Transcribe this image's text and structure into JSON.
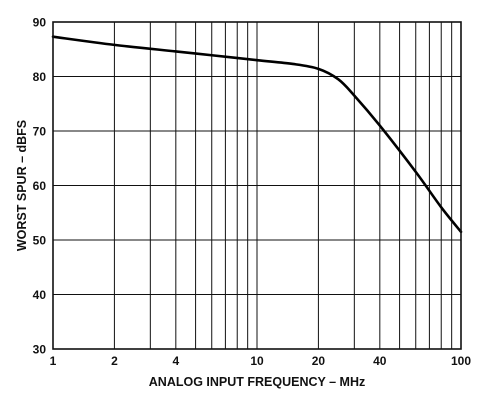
{
  "chart_data": {
    "type": "line",
    "xscale": "log",
    "xlabel": "ANALOG INPUT FREQUENCY – MHz",
    "ylabel": "WORST SPUR – dBFS",
    "xlim": [
      1,
      100
    ],
    "ylim": [
      30,
      90
    ],
    "grid": true,
    "x_tick_labels": [
      "1",
      "2",
      "4",
      "10",
      "20",
      "40",
      "100"
    ],
    "y_tick_labels": [
      "90",
      "80",
      "70",
      "60",
      "50",
      "40",
      "30"
    ],
    "series": [
      {
        "x": [
          1,
          2,
          4,
          6,
          10,
          15,
          20,
          25,
          30,
          40,
          60,
          80,
          100
        ],
        "y": [
          87.3,
          85.8,
          84.6,
          83.9,
          83.0,
          82.3,
          81.4,
          79.5,
          76.5,
          71.0,
          62.5,
          56.0,
          51.5
        ]
      }
    ]
  }
}
